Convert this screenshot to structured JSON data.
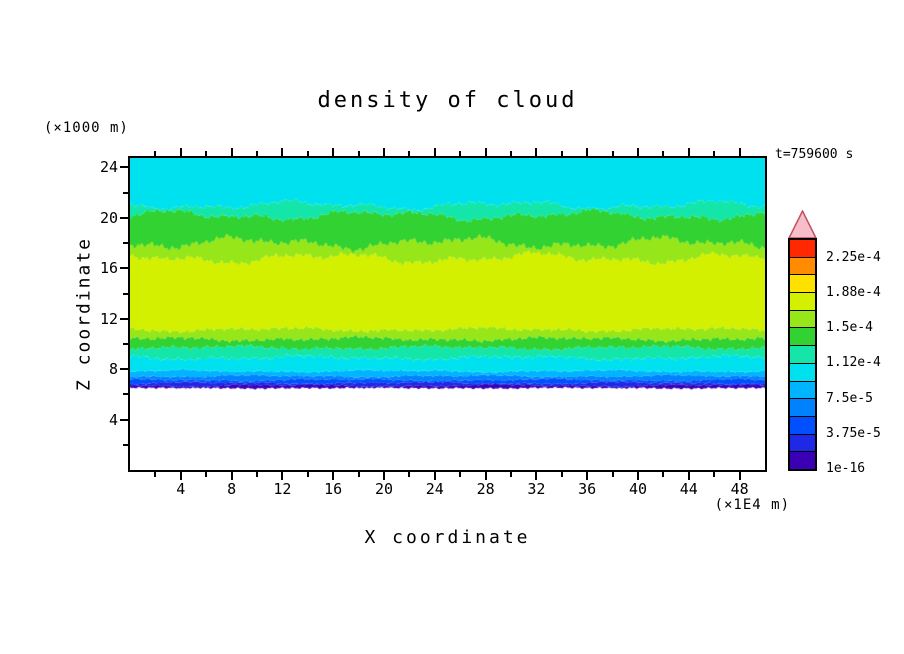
{
  "chart_data": {
    "type": "heatmap",
    "subtype": "filled_contour",
    "title": "density of cloud",
    "timestamp_label": "t=759600 s",
    "x_axis": {
      "label": "X coordinate",
      "unit": "(×1E4 m)",
      "range": [
        0,
        50
      ],
      "ticks": [
        4,
        8,
        12,
        16,
        20,
        24,
        28,
        32,
        36,
        40,
        44,
        48
      ],
      "minor_tick_step": 2
    },
    "y_axis": {
      "label": "Z coordinate",
      "unit": "(×1000 m)",
      "range": [
        0,
        24.75
      ],
      "ticks": [
        4,
        8,
        12,
        16,
        20,
        24
      ],
      "minor_tick_step": 2
    },
    "levels": [
      1e-16,
      1.875e-05,
      3.75e-05,
      5.625e-05,
      7.5e-05,
      9.375e-05,
      0.0001125,
      0.00013125,
      0.00015,
      0.00016875,
      0.0001875,
      0.00020625,
      0.000225
    ],
    "profile": {
      "description": "Horizontally quasi-uniform stratified cloud layer: density jumps from 0 at the sharp cloud base near z=6.5 (×1000 m) through thin violet/blue/cyan bands, reaches its maximum (chartreuse band, ~1.7e-4 to 1.9e-4) between z≈11 and z≈17, then decreases gradually upward through green and cyan to ~1e-4 at the model top; below z≈6.5 the domain is cloud-free (white).",
      "cloud_base_z": 6.5,
      "lower_crossings_z": [
        6.7,
        6.9,
        7.15,
        7.45,
        7.85,
        8.9,
        9.7,
        10.4,
        11.15
      ],
      "upper_crossings_z": [
        16.8,
        18.0,
        20.2,
        21.0
      ],
      "upper_crossing_levels": [
        0.00016875,
        0.00015,
        0.00013125,
        0.0001125
      ],
      "z_top": 24.75
    }
  },
  "colorbar": {
    "colors": [
      "#3c00b4",
      "#1e28e6",
      "#0050ff",
      "#0082ff",
      "#00b4ff",
      "#00e1f0",
      "#14e6aa",
      "#32d232",
      "#96e619",
      "#d2f000",
      "#ffe100",
      "#ff8c00",
      "#ff2800"
    ],
    "overflow_arrow_fill": "#f5bec8",
    "overflow_arrow_stroke": "#c05060",
    "labels": [
      "1e-16",
      "3.75e-5",
      "7.5e-5",
      "1.12e-4",
      "1.5e-4",
      "1.88e-4",
      "2.25e-4"
    ],
    "label_boundary_indices": [
      0,
      2,
      4,
      6,
      8,
      10,
      12
    ]
  }
}
